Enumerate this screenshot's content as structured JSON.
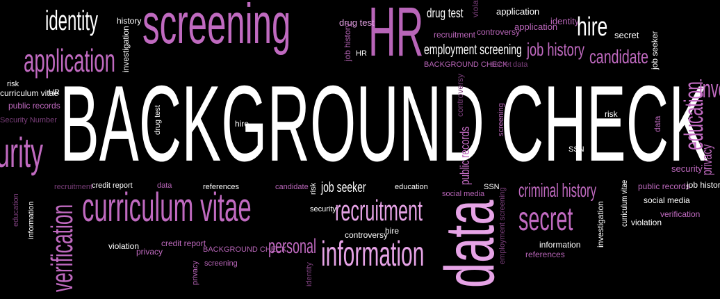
{
  "colors": {
    "background": "#000000",
    "white": "#ffffff",
    "pink_light": "#e6a3e6",
    "purple_mid": "#b865b8",
    "purple_dark": "#7a3e7a",
    "magenta": "#c06ac0"
  },
  "words": {
    "main": "BACKGROUND CHECK",
    "identity": "identity",
    "history": "history",
    "screening": "screening",
    "HR": "HR",
    "drug_test": "drug test",
    "violation": "violation",
    "application": "application",
    "identity2": "identity",
    "hire": "hire",
    "secret": "secret",
    "drug_test2": "drug test",
    "job_history": "job history",
    "HR2": "HR",
    "recruitment": "recruitment",
    "controversy": "controversy",
    "application2": "application",
    "application3": "application",
    "investigation": "investigation",
    "employment_screening": "employment screening",
    "job_history2": "job history",
    "candidate": "candidate",
    "job_seeker": "job seeker",
    "background_check_small": "BACKGROUND CHECK",
    "secret2": "secret",
    "data": "data",
    "risk": "risk",
    "curriculum_vitae_small": "curriculum vitae",
    "HR3": "HR",
    "public_records": "public records",
    "security_number": "Security Number",
    "urity": "urity",
    "drug_test3": "drug test",
    "hire2": "hire",
    "controversy2": "controversy",
    "screening2": "screening",
    "public_records2": "public records",
    "risk2": "risk",
    "SSN": "SSN",
    "data2": "data",
    "education": "education",
    "privacy": "privacy",
    "security": "security",
    "inve": "inve",
    "recruitment2": "recruitment",
    "credit_report": "credit report",
    "data3": "data",
    "references": "references",
    "candidate2": "candidate",
    "risk3": "risk",
    "job_seeker2": "job seeker",
    "education2": "education",
    "social_media": "social media",
    "SSN2": "SSN",
    "criminal_history": "criminal history",
    "curriculum_vitae2": "curriculum vitae",
    "public_records3": "public records",
    "job_history3": "job history",
    "social_media2": "social media",
    "verification": "verification",
    "curriculum_vitae_big": "curriculum vitae",
    "security2": "security",
    "recruitment_big": "recruitment",
    "data_big": "data",
    "employment_screening2": "employment screening",
    "secret_big": "secret",
    "investigation2": "investigation",
    "violation2": "violation",
    "education3": "education",
    "information_small": "information",
    "verification_big": "verification",
    "controversy3": "controversy",
    "hire3": "hire",
    "violation3": "violation",
    "privacy2": "privacy",
    "credit_report2": "credit report",
    "background_check_small2": "BACKGROUND CHECK",
    "screening3": "screening",
    "personal": "personal",
    "information_big": "information",
    "information2": "information",
    "references2": "references",
    "privacy3": "privacy",
    "identity3": "identity"
  }
}
